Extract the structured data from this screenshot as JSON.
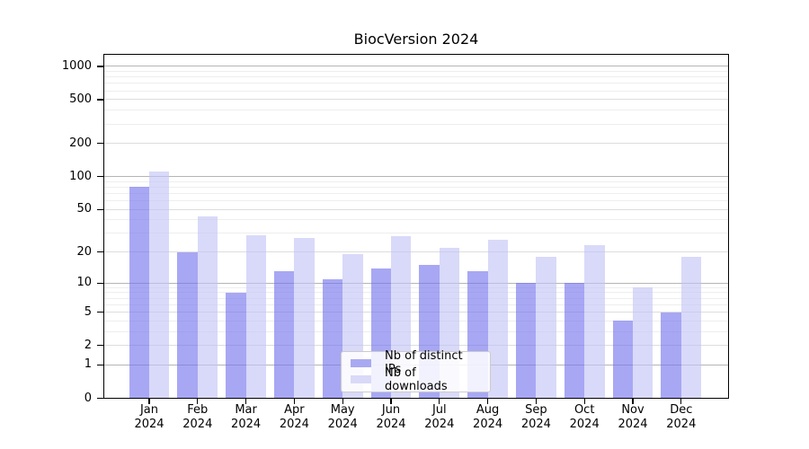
{
  "chart_data": {
    "type": "bar",
    "title": "BiocVersion 2024",
    "categories": [
      "Jan",
      "Feb",
      "Mar",
      "Apr",
      "May",
      "Jun",
      "Jul",
      "Aug",
      "Sep",
      "Oct",
      "Nov",
      "Dec"
    ],
    "year": "2024",
    "series": [
      {
        "name": "Nb of distinct IPs",
        "values": [
          81,
          20,
          8,
          13,
          11,
          14,
          15,
          13,
          10,
          10,
          4,
          5
        ]
      },
      {
        "name": "Nb of downloads",
        "values": [
          112,
          43,
          29,
          27,
          19,
          28,
          22,
          26,
          18,
          23,
          9,
          18
        ]
      }
    ],
    "y_axis": {
      "scale": "log1p",
      "ticks": [
        0,
        1,
        2,
        5,
        10,
        20,
        50,
        100,
        200,
        500,
        1000
      ],
      "ylim": [
        0,
        1300
      ],
      "major_ticks": [
        1,
        10,
        100,
        1000
      ]
    },
    "grid": true,
    "legend_position": "inside-bottom-center",
    "colors": {
      "bar_ips_fill": "#7171ed",
      "bar_downloads_fill": "#c2c2f5",
      "bar_opacity": 0.62,
      "legend_swatch_ips": "#a9a9f3",
      "legend_swatch_downloads": "#d9d9f8",
      "grid_major": "#b5b5b5",
      "grid_labeled": "#dddddd",
      "grid_minor": "#eeeeee",
      "axis": "#000000"
    }
  }
}
